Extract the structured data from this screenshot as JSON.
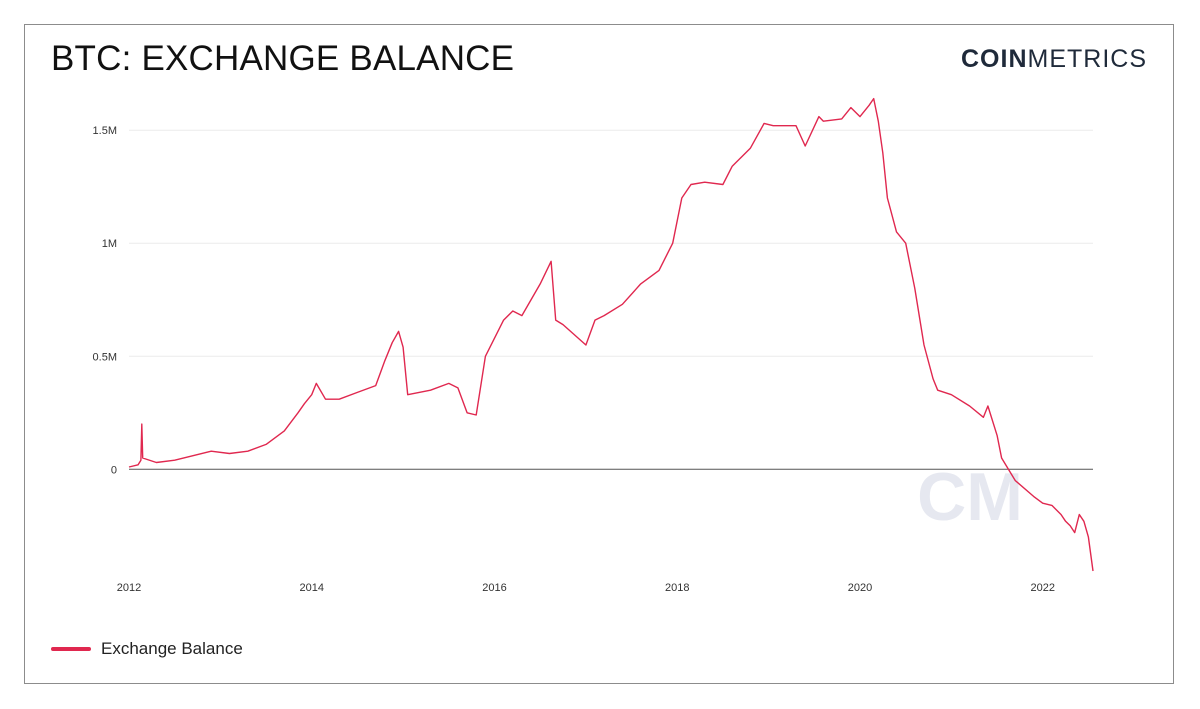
{
  "header": {
    "title": "BTC: EXCHANGE BALANCE",
    "brand_bold": "COIN",
    "brand_light": "METRICS"
  },
  "watermark": {
    "text": "CM"
  },
  "colors": {
    "series": "#e0284f",
    "grid": "#ececec",
    "zero": "#555555",
    "watermark": "#e6e8f0"
  },
  "legend": {
    "label": "Exchange Balance"
  },
  "chart_data": {
    "type": "line",
    "title": "BTC: EXCHANGE BALANCE",
    "xlabel": "",
    "ylabel": "",
    "xlim": [
      2012.0,
      2022.55
    ],
    "ylim": [
      -450000,
      1700000
    ],
    "grid": true,
    "legend_position": "bottom-left",
    "x_ticks": [
      {
        "value": 2012,
        "label": "2012"
      },
      {
        "value": 2014,
        "label": "2014"
      },
      {
        "value": 2016,
        "label": "2016"
      },
      {
        "value": 2018,
        "label": "2018"
      },
      {
        "value": 2020,
        "label": "2020"
      },
      {
        "value": 2022,
        "label": "2022"
      }
    ],
    "y_ticks": [
      {
        "value": 0,
        "label": "0"
      },
      {
        "value": 500000,
        "label": "0.5M"
      },
      {
        "value": 1000000,
        "label": "1M"
      },
      {
        "value": 1500000,
        "label": "1.5M"
      }
    ],
    "series": [
      {
        "name": "Exchange Balance",
        "color": "#e0284f",
        "x": [
          2012.0,
          2012.1,
          2012.13,
          2012.14,
          2012.15,
          2012.3,
          2012.5,
          2012.7,
          2012.9,
          2013.1,
          2013.3,
          2013.5,
          2013.7,
          2013.85,
          2013.92,
          2014.0,
          2014.05,
          2014.15,
          2014.3,
          2014.5,
          2014.7,
          2014.8,
          2014.88,
          2014.95,
          2015.0,
          2015.05,
          2015.3,
          2015.5,
          2015.6,
          2015.7,
          2015.8,
          2015.9,
          2016.0,
          2016.1,
          2016.2,
          2016.3,
          2016.5,
          2016.62,
          2016.67,
          2016.75,
          2017.0,
          2017.1,
          2017.2,
          2017.4,
          2017.6,
          2017.8,
          2017.95,
          2018.05,
          2018.15,
          2018.3,
          2018.5,
          2018.6,
          2018.8,
          2018.95,
          2019.05,
          2019.3,
          2019.4,
          2019.55,
          2019.6,
          2019.8,
          2019.9,
          2020.0,
          2020.1,
          2020.15,
          2020.2,
          2020.25,
          2020.3,
          2020.4,
          2020.5,
          2020.6,
          2020.7,
          2020.8,
          2020.85,
          2021.0,
          2021.2,
          2021.35,
          2021.4,
          2021.5,
          2021.55,
          2021.7,
          2021.9,
          2022.0,
          2022.1,
          2022.2,
          2022.25,
          2022.3,
          2022.35,
          2022.4,
          2022.45,
          2022.5,
          2022.55
        ],
        "values": [
          10000,
          20000,
          40000,
          200000,
          50000,
          30000,
          40000,
          60000,
          80000,
          70000,
          80000,
          110000,
          170000,
          250000,
          290000,
          330000,
          380000,
          310000,
          310000,
          340000,
          370000,
          480000,
          560000,
          610000,
          540000,
          330000,
          350000,
          380000,
          360000,
          250000,
          240000,
          500000,
          580000,
          660000,
          700000,
          680000,
          820000,
          920000,
          660000,
          640000,
          550000,
          660000,
          680000,
          730000,
          820000,
          880000,
          1000000,
          1200000,
          1260000,
          1270000,
          1260000,
          1340000,
          1420000,
          1530000,
          1520000,
          1520000,
          1430000,
          1560000,
          1540000,
          1550000,
          1600000,
          1560000,
          1610000,
          1640000,
          1540000,
          1400000,
          1200000,
          1050000,
          1000000,
          800000,
          550000,
          400000,
          350000,
          330000,
          280000,
          230000,
          280000,
          150000,
          50000,
          -50000,
          -120000,
          -150000,
          -160000,
          -200000,
          -230000,
          -250000,
          -280000,
          -200000,
          -230000,
          -300000,
          -450000
        ]
      }
    ]
  }
}
